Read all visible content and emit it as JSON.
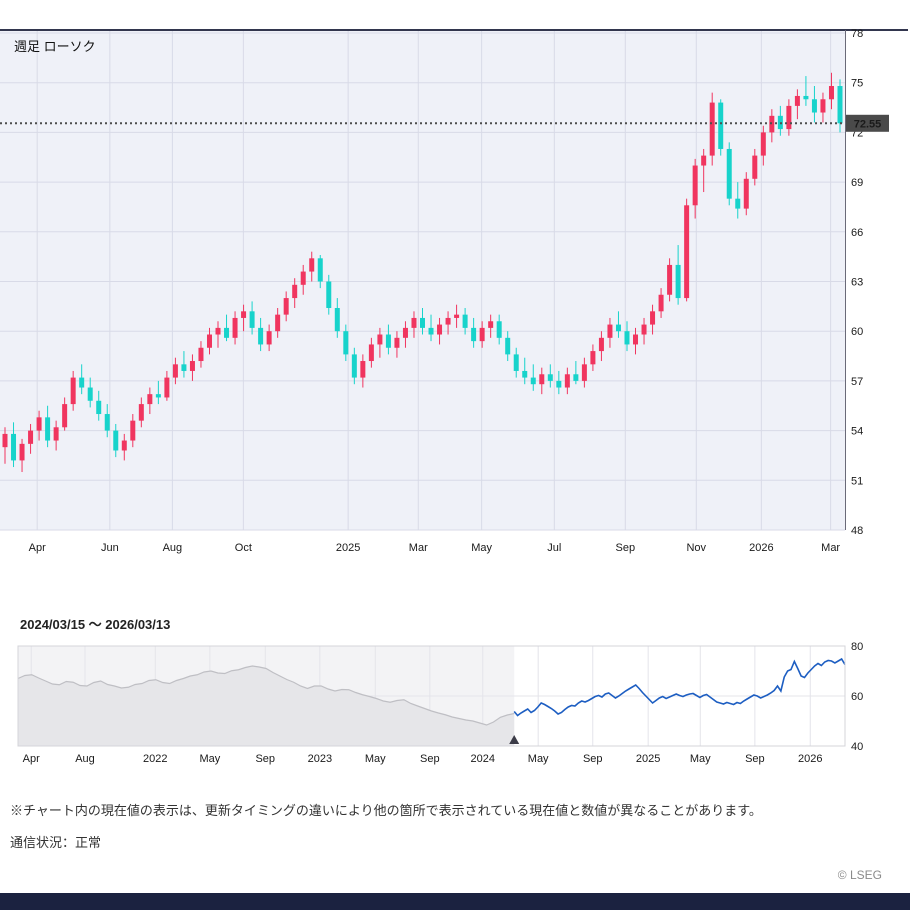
{
  "footer": {
    "disclaimer": "※チャート内の現在値の表示は、更新タイミングの違いにより他の箇所で表示されている現在値と数値が異なることがあります。",
    "connection_status": "通信状況：正常",
    "copyright": "© LSEG"
  },
  "chart_data": [
    {
      "type": "candlestick",
      "name": "weekly-candlestick",
      "title": "週足 ローソク",
      "ylim": [
        48,
        78
      ],
      "y_ticks": [
        78,
        75,
        72,
        69,
        66,
        63,
        60,
        57,
        54,
        51,
        48
      ],
      "x_ticks": [
        {
          "label": "Apr",
          "pos": 0.044
        },
        {
          "label": "Jun",
          "pos": 0.13
        },
        {
          "label": "Aug",
          "pos": 0.204
        },
        {
          "label": "Oct",
          "pos": 0.288
        },
        {
          "label": "2025",
          "pos": 0.412
        },
        {
          "label": "Mar",
          "pos": 0.495
        },
        {
          "label": "May",
          "pos": 0.57
        },
        {
          "label": "Jul",
          "pos": 0.656
        },
        {
          "label": "Sep",
          "pos": 0.74
        },
        {
          "label": "Nov",
          "pos": 0.824
        },
        {
          "label": "2026",
          "pos": 0.901
        },
        {
          "label": "Mar",
          "pos": 0.983
        }
      ],
      "current_value": 72.55,
      "current_value_label": "72.55",
      "up_color": "#f0355f",
      "down_color": "#17d3cb",
      "bg_color": "#eff1f8",
      "grid_color": "#d8dae7",
      "border_color": "#32364e",
      "current_line_color": "#4d4d4d",
      "badge_bg": "#4a4a4a",
      "candles": [
        [
          53.0,
          54.2,
          52.0,
          53.8
        ],
        [
          53.8,
          54.5,
          51.8,
          52.2
        ],
        [
          52.2,
          53.5,
          51.5,
          53.2
        ],
        [
          53.2,
          54.4,
          52.6,
          54.0
        ],
        [
          54.0,
          55.2,
          53.4,
          54.8
        ],
        [
          54.8,
          55.5,
          53.0,
          53.4
        ],
        [
          53.4,
          54.6,
          52.8,
          54.2
        ],
        [
          54.2,
          56.0,
          54.0,
          55.6
        ],
        [
          55.6,
          57.6,
          55.2,
          57.2
        ],
        [
          57.2,
          58.0,
          56.2,
          56.6
        ],
        [
          56.6,
          57.2,
          55.4,
          55.8
        ],
        [
          55.8,
          56.4,
          54.6,
          55.0
        ],
        [
          55.0,
          55.6,
          53.6,
          54.0
        ],
        [
          54.0,
          54.4,
          52.4,
          52.8
        ],
        [
          52.8,
          53.8,
          52.2,
          53.4
        ],
        [
          53.4,
          55.0,
          53.0,
          54.6
        ],
        [
          54.6,
          56.0,
          54.2,
          55.6
        ],
        [
          55.6,
          56.6,
          55.0,
          56.2
        ],
        [
          56.2,
          57.0,
          55.6,
          56.0
        ],
        [
          56.0,
          57.6,
          55.8,
          57.2
        ],
        [
          57.2,
          58.4,
          56.8,
          58.0
        ],
        [
          58.0,
          58.8,
          57.2,
          57.6
        ],
        [
          57.6,
          58.6,
          57.0,
          58.2
        ],
        [
          58.2,
          59.4,
          57.8,
          59.0
        ],
        [
          59.0,
          60.2,
          58.6,
          59.8
        ],
        [
          59.8,
          60.6,
          59.0,
          60.2
        ],
        [
          60.2,
          61.0,
          59.4,
          59.6
        ],
        [
          59.6,
          61.2,
          59.2,
          60.8
        ],
        [
          60.8,
          61.6,
          60.0,
          61.2
        ],
        [
          61.2,
          61.8,
          59.8,
          60.2
        ],
        [
          60.2,
          60.8,
          58.8,
          59.2
        ],
        [
          59.2,
          60.4,
          58.8,
          60.0
        ],
        [
          60.0,
          61.4,
          59.6,
          61.0
        ],
        [
          61.0,
          62.4,
          60.6,
          62.0
        ],
        [
          62.0,
          63.2,
          61.4,
          62.8
        ],
        [
          62.8,
          64.0,
          62.2,
          63.6
        ],
        [
          63.6,
          64.8,
          63.0,
          64.4
        ],
        [
          64.4,
          64.6,
          62.6,
          63.0
        ],
        [
          63.0,
          63.4,
          61.0,
          61.4
        ],
        [
          61.4,
          62.0,
          59.6,
          60.0
        ],
        [
          60.0,
          60.4,
          58.2,
          58.6
        ],
        [
          58.6,
          59.0,
          56.8,
          57.2
        ],
        [
          57.2,
          58.6,
          56.6,
          58.2
        ],
        [
          58.2,
          59.6,
          57.8,
          59.2
        ],
        [
          59.2,
          60.2,
          58.4,
          59.8
        ],
        [
          59.8,
          60.4,
          58.6,
          59.0
        ],
        [
          59.0,
          60.0,
          58.4,
          59.6
        ],
        [
          59.6,
          60.6,
          59.0,
          60.2
        ],
        [
          60.2,
          61.2,
          59.6,
          60.8
        ],
        [
          60.8,
          61.4,
          59.8,
          60.2
        ],
        [
          60.2,
          61.0,
          59.4,
          59.8
        ],
        [
          59.8,
          60.8,
          59.2,
          60.4
        ],
        [
          60.4,
          61.2,
          59.8,
          60.8
        ],
        [
          60.8,
          61.6,
          60.2,
          61.0
        ],
        [
          61.0,
          61.4,
          59.8,
          60.2
        ],
        [
          60.2,
          60.8,
          59.0,
          59.4
        ],
        [
          59.4,
          60.6,
          59.0,
          60.2
        ],
        [
          60.2,
          61.0,
          59.6,
          60.6
        ],
        [
          60.6,
          61.0,
          59.2,
          59.6
        ],
        [
          59.6,
          60.0,
          58.2,
          58.6
        ],
        [
          58.6,
          59.0,
          57.2,
          57.6
        ],
        [
          57.6,
          58.4,
          56.8,
          57.2
        ],
        [
          57.2,
          58.0,
          56.4,
          56.8
        ],
        [
          56.8,
          57.8,
          56.2,
          57.4
        ],
        [
          57.4,
          58.0,
          56.6,
          57.0
        ],
        [
          57.0,
          57.6,
          56.2,
          56.6
        ],
        [
          56.6,
          57.8,
          56.2,
          57.4
        ],
        [
          57.4,
          58.2,
          56.8,
          57.0
        ],
        [
          57.0,
          58.4,
          56.6,
          58.0
        ],
        [
          58.0,
          59.2,
          57.6,
          58.8
        ],
        [
          58.8,
          60.0,
          58.2,
          59.6
        ],
        [
          59.6,
          60.8,
          59.0,
          60.4
        ],
        [
          60.4,
          61.2,
          59.6,
          60.0
        ],
        [
          60.0,
          60.6,
          58.8,
          59.2
        ],
        [
          59.2,
          60.2,
          58.6,
          59.8
        ],
        [
          59.8,
          60.8,
          59.2,
          60.4
        ],
        [
          60.4,
          61.6,
          59.8,
          61.2
        ],
        [
          61.2,
          62.6,
          60.8,
          62.2
        ],
        [
          62.2,
          64.4,
          61.8,
          64.0
        ],
        [
          64.0,
          65.2,
          61.6,
          62.0
        ],
        [
          62.0,
          68.0,
          61.8,
          67.6
        ],
        [
          67.6,
          70.4,
          66.8,
          70.0
        ],
        [
          70.0,
          71.0,
          68.4,
          70.6
        ],
        [
          70.6,
          74.4,
          70.0,
          73.8
        ],
        [
          73.8,
          74.0,
          70.6,
          71.0
        ],
        [
          71.0,
          71.4,
          67.6,
          68.0
        ],
        [
          68.0,
          69.0,
          66.8,
          67.4
        ],
        [
          67.4,
          69.6,
          67.0,
          69.2
        ],
        [
          69.2,
          71.0,
          68.8,
          70.6
        ],
        [
          70.6,
          72.4,
          70.0,
          72.0
        ],
        [
          72.0,
          73.4,
          71.4,
          73.0
        ],
        [
          73.0,
          73.6,
          71.8,
          72.2
        ],
        [
          72.2,
          74.0,
          71.8,
          73.6
        ],
        [
          73.6,
          74.6,
          72.8,
          74.2
        ],
        [
          74.2,
          75.4,
          73.6,
          74.0
        ],
        [
          74.0,
          74.8,
          72.6,
          73.2
        ],
        [
          73.2,
          74.4,
          72.6,
          74.0
        ],
        [
          74.0,
          75.6,
          73.4,
          74.8
        ],
        [
          74.8,
          75.2,
          72.0,
          72.55
        ]
      ]
    },
    {
      "type": "line",
      "name": "navigator",
      "range_label": "2024/03/15 ～ 2026/03/13",
      "ylim": [
        40,
        80
      ],
      "y_ticks": [
        80,
        60,
        40
      ],
      "x_ticks": [
        {
          "label": "Apr",
          "pos": 0.016
        },
        {
          "label": "Aug",
          "pos": 0.081
        },
        {
          "label": "2022",
          "pos": 0.166
        },
        {
          "label": "May",
          "pos": 0.232
        },
        {
          "label": "Sep",
          "pos": 0.299
        },
        {
          "label": "2023",
          "pos": 0.365
        },
        {
          "label": "May",
          "pos": 0.432
        },
        {
          "label": "Sep",
          "pos": 0.498
        },
        {
          "label": "2024",
          "pos": 0.562
        },
        {
          "label": "May",
          "pos": 0.629
        },
        {
          "label": "Sep",
          "pos": 0.695
        },
        {
          "label": "2025",
          "pos": 0.762
        },
        {
          "label": "May",
          "pos": 0.825
        },
        {
          "label": "Sep",
          "pos": 0.891
        },
        {
          "label": "2026",
          "pos": 0.958
        }
      ],
      "selected_start_frac": 0.6,
      "bg_color": "#f3f3f5",
      "selected_bg_color": "#ffffff",
      "history_color": "#bfbfc4",
      "history_fill": "#e6e6e9",
      "selected_color": "#1d5ec2",
      "history_values": [
        67,
        68.2,
        68.5,
        67.2,
        66,
        64.8,
        64.5,
        65.8,
        65.5,
        64.2,
        64,
        65.4,
        66,
        64.6,
        64,
        63.2,
        63.5,
        64.6,
        65,
        66.2,
        66.5,
        65.4,
        65,
        66.2,
        67,
        68,
        68.5,
        69.6,
        70,
        69.2,
        69,
        70.1,
        70.5,
        71.4,
        72,
        71.6,
        71,
        69.4,
        68,
        66.6,
        65.5,
        64,
        63,
        64,
        64,
        62.8,
        62,
        62.6,
        62.5,
        61.4,
        60.5,
        59.8,
        59,
        58,
        57.5,
        58.2,
        58.5,
        57,
        56,
        55,
        54,
        53.2,
        52.5,
        51.6,
        51,
        50.4,
        50,
        49.2,
        48.4,
        49.6,
        51.5,
        52.4,
        53
      ],
      "selected_values": [
        53.8,
        52.2,
        53.2,
        54.0,
        54.8,
        53.4,
        54.2,
        55.6,
        57.2,
        56.6,
        55.8,
        55.0,
        54.0,
        52.8,
        53.4,
        54.6,
        55.6,
        56.2,
        56.0,
        57.2,
        58.0,
        57.6,
        58.2,
        59.0,
        59.8,
        60.2,
        59.6,
        60.8,
        61.2,
        60.2,
        59.2,
        60.0,
        61.0,
        62.0,
        62.8,
        63.6,
        64.4,
        63.0,
        61.4,
        60.0,
        58.6,
        57.2,
        58.2,
        59.2,
        59.8,
        59.0,
        59.6,
        60.2,
        60.8,
        60.2,
        59.8,
        60.4,
        60.8,
        61.0,
        60.2,
        59.4,
        60.2,
        60.6,
        59.6,
        58.6,
        57.6,
        57.2,
        56.8,
        57.4,
        57.0,
        56.6,
        57.4,
        57.0,
        58.0,
        58.8,
        59.6,
        60.4,
        60.0,
        59.2,
        59.8,
        60.4,
        61.2,
        62.2,
        64.0,
        62.0,
        67.6,
        70.0,
        70.6,
        73.8,
        71.0,
        68.0,
        67.4,
        69.2,
        70.6,
        72.0,
        73.0,
        72.2,
        73.6,
        74.2,
        74.0,
        73.2,
        74.0,
        74.8,
        72.55
      ]
    }
  ]
}
